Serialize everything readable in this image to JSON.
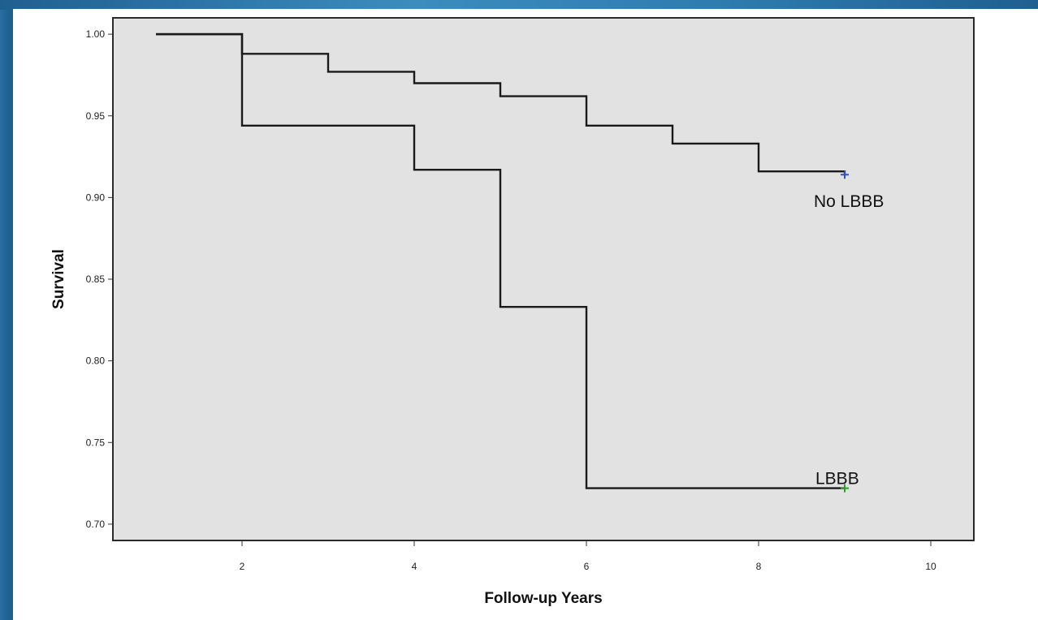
{
  "chart_data": {
    "type": "line",
    "title": "",
    "xlabel": "Follow-up Years",
    "ylabel": "Survival",
    "xlim": [
      0.5,
      10.5
    ],
    "ylim": [
      0.69,
      1.01
    ],
    "xticks": [
      2,
      4,
      6,
      8,
      10
    ],
    "xtick_labels": [
      "2",
      "4",
      "6",
      "8",
      "10"
    ],
    "yticks": [
      0.7,
      0.75,
      0.8,
      0.85,
      0.9,
      0.95,
      1.0
    ],
    "ytick_labels": [
      "0.70",
      "0.75",
      "0.80",
      "0.85",
      "0.90",
      "0.95",
      "1.00"
    ],
    "grid": false,
    "step": true,
    "series": [
      {
        "name": "No LBBB",
        "x": [
          1,
          2,
          3,
          4,
          5,
          6,
          7,
          8,
          9
        ],
        "y": [
          1.0,
          0.988,
          0.977,
          0.97,
          0.962,
          0.944,
          0.933,
          0.916,
          0.914
        ],
        "censor": {
          "x": 9,
          "y": 0.914,
          "color": "#3050c8"
        }
      },
      {
        "name": "LBBB",
        "x": [
          1,
          2,
          4,
          5,
          6,
          9
        ],
        "y": [
          1.0,
          0.944,
          0.917,
          0.833,
          0.722,
          0.722
        ],
        "censor": {
          "x": 9,
          "y": 0.722,
          "color": "#2aa02a"
        }
      }
    ],
    "colors": {
      "plot_background": "#e2e2e2",
      "line": "#1a1a1a",
      "frame": "#2a2a2a"
    }
  }
}
